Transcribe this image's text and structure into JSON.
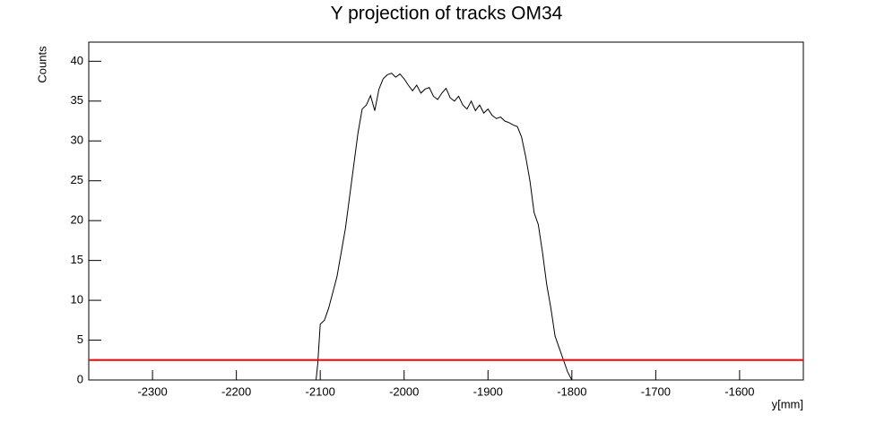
{
  "chart_data": {
    "type": "line",
    "title": "Y projection of tracks OM34",
    "x_label": "y[mm]",
    "y_label": "Counts",
    "xlim": [
      -2376,
      -1524
    ],
    "ylim": [
      0,
      42.4
    ],
    "xticks": [
      -2300,
      -2200,
      -2100,
      -2000,
      -1900,
      -1800,
      -1700,
      -1600
    ],
    "yticks": [
      0,
      5,
      10,
      15,
      20,
      25,
      30,
      35,
      40
    ],
    "x": [
      -2105,
      -2103,
      -2100,
      -2095,
      -2090,
      -2085,
      -2080,
      -2075,
      -2070,
      -2065,
      -2060,
      -2055,
      -2050,
      -2045,
      -2040,
      -2035,
      -2030,
      -2025,
      -2020,
      -2015,
      -2010,
      -2005,
      -2000,
      -1995,
      -1990,
      -1985,
      -1980,
      -1975,
      -1970,
      -1965,
      -1960,
      -1955,
      -1950,
      -1945,
      -1940,
      -1935,
      -1930,
      -1925,
      -1920,
      -1915,
      -1910,
      -1905,
      -1900,
      -1895,
      -1890,
      -1885,
      -1880,
      -1875,
      -1870,
      -1865,
      -1860,
      -1855,
      -1850,
      -1845,
      -1840,
      -1835,
      -1830,
      -1825,
      -1820,
      -1815,
      -1810,
      -1805,
      -1800
    ],
    "series": [
      {
        "color": "#000000",
        "values": [
          0,
          2,
          7,
          7.5,
          9,
          11,
          13,
          16,
          19,
          23,
          27,
          31,
          34,
          34.5,
          35.7,
          33.8,
          36.5,
          37.8,
          38.3,
          38.5,
          38,
          38.4,
          37.8,
          37,
          36.3,
          37,
          36,
          36.5,
          36.7,
          35.6,
          35.2,
          36,
          36.6,
          35.4,
          35,
          35.6,
          34.5,
          34,
          35,
          33.8,
          34.5,
          33.5,
          34,
          33.2,
          32.8,
          33,
          32.5,
          32.3,
          32,
          31.8,
          30.5,
          28,
          25,
          21,
          19.5,
          16,
          12,
          9,
          5.5,
          4,
          2.5,
          1,
          0
        ]
      }
    ],
    "reference_line": {
      "y": 2.5,
      "color": "#ff0000"
    }
  }
}
